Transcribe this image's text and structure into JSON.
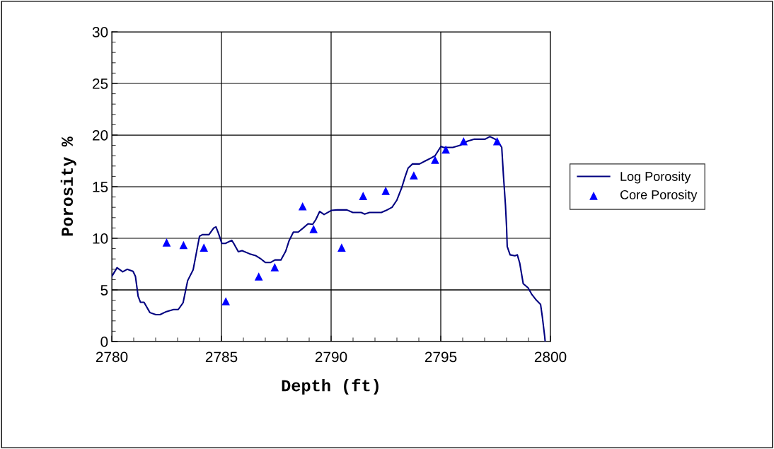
{
  "chart_data": {
    "type": "line",
    "xlabel": "Depth (ft)",
    "ylabel": "Porosity %",
    "xlim": [
      2780,
      2800
    ],
    "xticks": [
      2780,
      2785,
      2790,
      2795,
      2800
    ],
    "ylim": [
      0,
      30
    ],
    "yticks": [
      0,
      5,
      10,
      15,
      20,
      25,
      30
    ],
    "grid": true,
    "legend": "right",
    "series": [
      {
        "name": "Log Porosity",
        "color": "#000080",
        "marker": "none",
        "line_style": "solid",
        "x": [
          2780,
          2780.24,
          2780.5,
          2780.7,
          2780.97,
          2781.08,
          2781.2,
          2781.31,
          2781.47,
          2781.74,
          2782.01,
          2782.2,
          2782.49,
          2782.82,
          2783.03,
          2783.25,
          2783.46,
          2783.71,
          2783.84,
          2784.0,
          2784.13,
          2784.43,
          2784.65,
          2784.75,
          2784.86,
          2785.02,
          2785.18,
          2785.47,
          2785.56,
          2785.77,
          2785.94,
          2786.28,
          2786.58,
          2786.8,
          2787.01,
          2787.23,
          2787.44,
          2787.71,
          2787.93,
          2788.09,
          2788.28,
          2788.5,
          2788.73,
          2788.95,
          2789.16,
          2789.3,
          2789.48,
          2789.68,
          2790.01,
          2790.28,
          2790.72,
          2790.99,
          2791.37,
          2791.53,
          2791.75,
          2792.29,
          2792.51,
          2792.78,
          2793.0,
          2793.22,
          2793.38,
          2793.51,
          2793.71,
          2794.03,
          2794.3,
          2794.58,
          2794.74,
          2795.01,
          2795.12,
          2795.55,
          2795.88,
          2796.21,
          2796.53,
          2797.02,
          2797.24,
          2797.57,
          2797.78,
          2797.86,
          2797.95,
          2798.0,
          2798.03,
          2798.16,
          2798.38,
          2798.49,
          2798.6,
          2798.76,
          2798.98,
          2799.14,
          2799.36,
          2799.55,
          2799.63,
          2799.74,
          2799.76
        ],
        "values": [
          6.3,
          7.15,
          6.75,
          7.0,
          6.8,
          6.3,
          4.4,
          3.8,
          3.8,
          2.8,
          2.6,
          2.6,
          2.9,
          3.1,
          3.1,
          3.75,
          5.9,
          6.95,
          8.4,
          10.2,
          10.35,
          10.35,
          11.0,
          11.1,
          10.5,
          9.5,
          9.5,
          9.8,
          9.5,
          8.7,
          8.8,
          8.5,
          8.3,
          8.0,
          7.65,
          7.65,
          7.9,
          7.9,
          8.75,
          9.8,
          10.6,
          10.6,
          11.0,
          11.4,
          11.35,
          11.8,
          12.6,
          12.3,
          12.7,
          12.75,
          12.75,
          12.5,
          12.5,
          12.35,
          12.5,
          12.5,
          12.7,
          13.0,
          13.7,
          14.9,
          16.0,
          16.8,
          17.2,
          17.2,
          17.5,
          17.8,
          18.0,
          18.9,
          18.8,
          18.8,
          19.0,
          19.4,
          19.6,
          19.6,
          19.85,
          19.5,
          18.8,
          16.0,
          13.2,
          11.1,
          9.2,
          8.4,
          8.3,
          8.4,
          7.6,
          5.6,
          5.2,
          4.6,
          4.0,
          3.6,
          2.4,
          0.45,
          0
        ]
      },
      {
        "name": "Core Porosity",
        "type": "scatter",
        "color": "#0000ff",
        "marker": "triangle",
        "x": [
          2782.5,
          2783.27,
          2784.2,
          2785.2,
          2786.7,
          2787.43,
          2788.7,
          2789.2,
          2790.48,
          2791.46,
          2792.49,
          2793.77,
          2794.74,
          2795.23,
          2796.04,
          2797.57
        ],
        "values": [
          9.6,
          9.35,
          9.1,
          3.9,
          6.3,
          7.2,
          13.1,
          10.9,
          9.1,
          14.1,
          14.6,
          16.1,
          17.6,
          18.6,
          19.4,
          19.4
        ]
      }
    ]
  }
}
